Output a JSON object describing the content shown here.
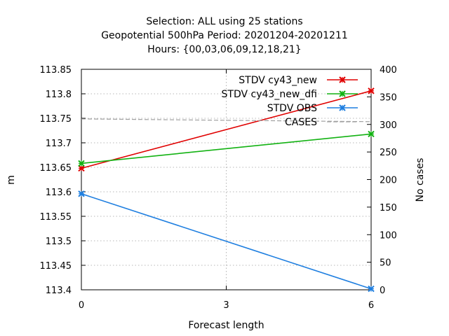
{
  "chart_data": {
    "type": "line",
    "title_lines": [
      "Selection: ALL using    25 stations",
      "Geopotential 500hPa   Period: 20201204-20201211",
      "Hours: {00,03,06,09,12,18,21}"
    ],
    "xlabel": "Forecast length",
    "ylabel": "m",
    "y2label": "No cases",
    "x_ticks": [
      0,
      3,
      6
    ],
    "xlim": [
      0,
      6
    ],
    "ylim": [
      113.4,
      113.85
    ],
    "y_ticks": [
      "113.4",
      "113.45",
      "113.5",
      "113.55",
      "113.6",
      "113.65",
      "113.7",
      "113.75",
      "113.8",
      "113.85"
    ],
    "y2lim": [
      0,
      400
    ],
    "y2_ticks": [
      "0",
      "50",
      "100",
      "150",
      "200",
      "250",
      "300",
      "350",
      "400"
    ],
    "grid": true,
    "legend_position": "top-right",
    "series": [
      {
        "name": "STDV cy43_new",
        "color": "#e00000",
        "axis": "y1",
        "marker": "x",
        "x": [
          0,
          6
        ],
        "y": [
          113.648,
          113.806
        ]
      },
      {
        "name": "STDV cy43_new_dfi",
        "color": "#12b212",
        "axis": "y1",
        "marker": "x",
        "x": [
          0,
          6
        ],
        "y": [
          113.658,
          113.718
        ]
      },
      {
        "name": "STDV OBS",
        "color": "#1f7fe0",
        "axis": "y1",
        "marker": "x",
        "x": [
          0,
          6
        ],
        "y": [
          113.596,
          113.402
        ]
      },
      {
        "name": "CASES",
        "color": "#a0a0a0",
        "axis": "y2",
        "marker": "none",
        "dashed": true,
        "x": [
          0,
          6
        ],
        "y": [
          310,
          305
        ]
      }
    ]
  }
}
